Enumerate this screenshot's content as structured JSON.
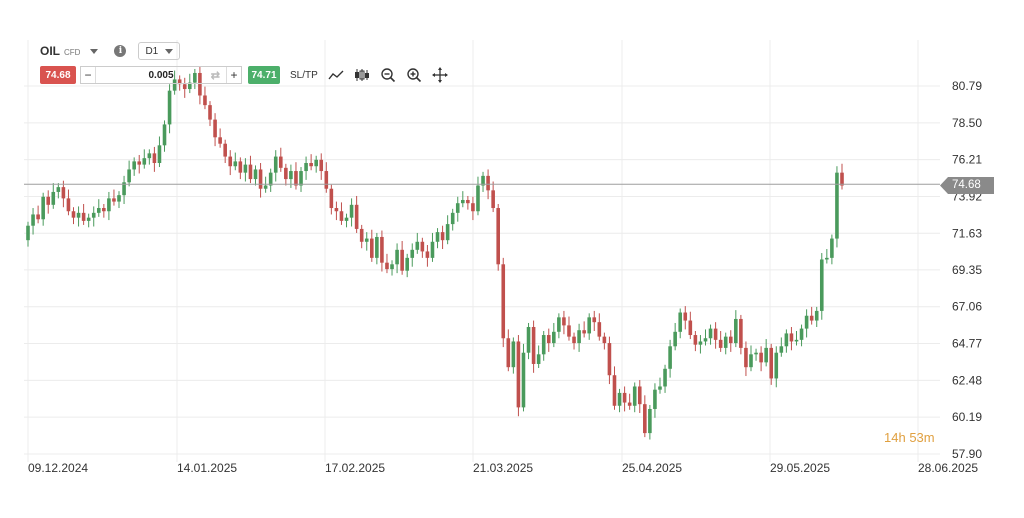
{
  "toolbar": {
    "symbol": "OIL",
    "instrument_type": "CFD",
    "timeframe": "D1",
    "bid": "74.68",
    "ask": "74.71",
    "quantity": "0.005",
    "minus": "−",
    "plus": "+",
    "sltp": "SL/TP",
    "info": "i"
  },
  "countdown": {
    "hours": "14",
    "h_unit": "h",
    "minutes": "53",
    "m_unit": "m"
  },
  "colors": {
    "up": "#4a9a5c",
    "down": "#c0504d",
    "grid": "#ececec",
    "price_line": "#9e9e9e",
    "timer": "#e0a040"
  },
  "chart_data": {
    "type": "candlestick",
    "title": "",
    "y_ticks": [
      "80.79",
      "78.50",
      "76.21",
      "73.92",
      "71.63",
      "69.35",
      "67.06",
      "64.77",
      "62.48",
      "60.19",
      "57.90"
    ],
    "x_ticks": [
      "09.12.2024",
      "14.01.2025",
      "17.02.2025",
      "21.03.2025",
      "25.04.2025",
      "29.05.2025",
      "28.06.2025"
    ],
    "current_price": "74.68",
    "ylim": [
      57.9,
      81.5
    ],
    "grid": true,
    "closes": [
      72.1,
      72.8,
      72.5,
      73.9,
      73.4,
      74.2,
      74.5,
      73.8,
      73.0,
      72.6,
      72.9,
      72.4,
      72.6,
      72.9,
      73.2,
      73.0,
      73.8,
      73.6,
      74.0,
      74.8,
      75.6,
      76.1,
      75.9,
      76.3,
      76.6,
      76.0,
      77.1,
      78.4,
      80.5,
      81.2,
      80.9,
      80.6,
      81.0,
      81.6,
      80.2,
      79.6,
      78.7,
      77.6,
      77.2,
      76.4,
      75.8,
      76.1,
      75.4,
      75.9,
      75.0,
      75.6,
      74.4,
      74.6,
      75.4,
      76.4,
      75.7,
      75.0,
      75.5,
      74.6,
      75.5,
      76.0,
      75.8,
      76.2,
      75.5,
      74.4,
      73.2,
      73.0,
      72.4,
      72.6,
      73.4,
      71.9,
      71.1,
      71.3,
      70.1,
      71.4,
      69.8,
      69.4,
      69.7,
      70.6,
      69.3,
      70.1,
      70.6,
      71.1,
      70.5,
      70.1,
      71.1,
      71.7,
      71.2,
      72.2,
      72.9,
      73.5,
      73.7,
      73.5,
      73.0,
      74.6,
      75.2,
      74.3,
      73.2,
      69.7,
      65.1,
      63.3,
      64.9,
      60.8,
      64.2,
      65.8,
      63.5,
      64.1,
      65.3,
      64.8,
      65.5,
      66.4,
      65.9,
      65.2,
      64.8,
      65.6,
      65.4,
      66.4,
      66.1,
      65.2,
      64.8,
      62.8,
      60.9,
      61.7,
      61.1,
      60.9,
      62.1,
      61.0,
      59.2,
      60.7,
      61.9,
      62.1,
      63.2,
      64.6,
      65.5,
      66.7,
      66.2,
      65.3,
      64.7,
      64.9,
      65.1,
      65.7,
      65.0,
      64.5,
      65.2,
      64.8,
      66.3,
      64.5,
      63.3,
      64.1,
      64.2,
      63.6,
      64.5,
      62.6,
      64.2,
      64.6,
      65.4,
      64.9,
      65.0,
      65.7,
      66.5,
      66.2,
      66.8,
      70.0,
      70.1,
      71.3,
      75.4,
      74.6
    ],
    "opens": [
      71.2,
      72.1,
      72.8,
      72.5,
      73.9,
      73.4,
      74.2,
      74.5,
      73.8,
      73.0,
      72.6,
      72.9,
      72.4,
      72.6,
      72.9,
      73.2,
      73.0,
      73.8,
      73.6,
      74.0,
      74.8,
      75.6,
      76.1,
      75.9,
      76.3,
      76.6,
      76.0,
      77.1,
      78.4,
      80.5,
      81.2,
      80.9,
      80.6,
      81.0,
      81.6,
      80.2,
      79.6,
      78.7,
      77.6,
      77.2,
      76.4,
      75.8,
      76.1,
      75.4,
      75.9,
      75.0,
      75.6,
      74.4,
      74.6,
      75.4,
      76.4,
      75.7,
      75.0,
      75.5,
      74.6,
      75.5,
      76.0,
      75.8,
      76.2,
      75.5,
      74.4,
      73.2,
      73.0,
      72.4,
      72.6,
      73.4,
      71.9,
      71.1,
      71.3,
      70.1,
      71.4,
      69.8,
      69.4,
      69.7,
      70.6,
      69.3,
      70.1,
      70.6,
      71.1,
      70.5,
      70.1,
      71.1,
      71.7,
      71.2,
      72.2,
      72.9,
      73.5,
      73.7,
      73.5,
      73.0,
      74.6,
      75.2,
      74.3,
      73.2,
      69.7,
      65.1,
      63.3,
      64.9,
      60.8,
      64.2,
      65.8,
      63.5,
      64.1,
      65.3,
      64.8,
      65.5,
      66.4,
      65.9,
      65.2,
      64.8,
      65.6,
      65.4,
      66.4,
      66.1,
      65.2,
      64.8,
      62.8,
      60.9,
      61.7,
      61.1,
      60.9,
      62.1,
      61.0,
      59.2,
      60.7,
      61.9,
      62.1,
      63.2,
      64.6,
      65.5,
      66.7,
      66.2,
      65.3,
      64.7,
      64.9,
      65.1,
      65.7,
      65.0,
      64.5,
      65.2,
      64.8,
      66.3,
      64.5,
      63.3,
      64.1,
      64.2,
      63.6,
      64.5,
      62.6,
      64.2,
      64.6,
      65.4,
      64.9,
      65.0,
      65.7,
      66.5,
      66.2,
      66.8,
      70.0,
      70.1,
      71.3,
      75.4
    ]
  }
}
